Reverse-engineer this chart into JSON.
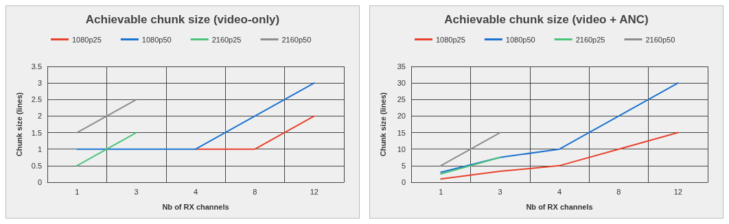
{
  "chart_data": [
    {
      "type": "line",
      "title": "Achievable chunk size (video-only)",
      "xlabel": "Nb of RX channels",
      "ylabel": "Chunk size (lines)",
      "categories": [
        "1",
        "3",
        "4",
        "8",
        "12"
      ],
      "ylim": [
        0,
        3.5
      ],
      "yticks": [
        0,
        0.5,
        1,
        1.5,
        2,
        2.5,
        3,
        3.5
      ],
      "grid": true,
      "legend": "top left",
      "marker": "none",
      "series": [
        {
          "name": "1080p25",
          "color": "#e8412c",
          "values": [
            null,
            null,
            1,
            1,
            2
          ]
        },
        {
          "name": "1080p50",
          "color": "#1a73d0",
          "values": [
            1,
            1,
            1,
            2,
            3
          ]
        },
        {
          "name": "2160p25",
          "color": "#4cc37a",
          "values": [
            0.5,
            1.5,
            null,
            null,
            null
          ]
        },
        {
          "name": "2160p50",
          "color": "#8c8c8c",
          "values": [
            1.5,
            2.5,
            null,
            null,
            null
          ]
        }
      ]
    },
    {
      "type": "line",
      "title": "Achievable chunk size (video + ANC)",
      "xlabel": "Nb of RX channels",
      "ylabel": "Chunk size (lines)",
      "categories": [
        "1",
        "3",
        "4",
        "8",
        "12"
      ],
      "ylim": [
        0,
        35
      ],
      "yticks": [
        0,
        5,
        10,
        15,
        20,
        25,
        30,
        35
      ],
      "grid": true,
      "legend": "top left",
      "marker": "none",
      "series": [
        {
          "name": "1080p25",
          "color": "#e8412c",
          "values": [
            1,
            3.3,
            5,
            10,
            15
          ]
        },
        {
          "name": "1080p50",
          "color": "#1a73d0",
          "values": [
            3,
            7.5,
            10,
            20,
            30
          ]
        },
        {
          "name": "2160p25",
          "color": "#4cc37a",
          "values": [
            2.5,
            7.5,
            null,
            null,
            null
          ]
        },
        {
          "name": "2160p50",
          "color": "#8c8c8c",
          "values": [
            5,
            15,
            null,
            null,
            null
          ]
        }
      ]
    }
  ]
}
